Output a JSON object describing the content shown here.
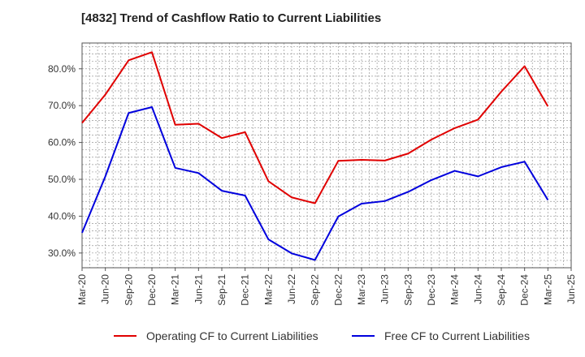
{
  "chart_data": {
    "type": "line",
    "title": "[4832]  Trend of Cashflow Ratio to Current Liabilities",
    "xlabel": "",
    "ylabel": "",
    "x_tick_labels": [
      "Mar-20",
      "Jun-20",
      "Sep-20",
      "Dec-20",
      "Mar-21",
      "Jun-21",
      "Sep-21",
      "Dec-21",
      "Mar-22",
      "Jun-22",
      "Sep-22",
      "Dec-22",
      "Mar-23",
      "Jun-23",
      "Sep-23",
      "Dec-23",
      "Mar-24",
      "Jun-24",
      "Sep-24",
      "Dec-24",
      "Mar-25",
      "Jun-25"
    ],
    "y_ticks": [
      30,
      40,
      50,
      60,
      70,
      80
    ],
    "y_tick_labels": [
      "30.0%",
      "40.0%",
      "50.0%",
      "60.0%",
      "70.0%",
      "80.0%"
    ],
    "ylim": [
      26,
      87
    ],
    "grid": true,
    "legend_position": "bottom",
    "series": [
      {
        "name": "Operating CF to Current Liabilities",
        "color": "#e00000",
        "x": [
          "Mar-20",
          "Jun-20",
          "Sep-20",
          "Dec-20",
          "Mar-21",
          "Jun-21",
          "Sep-21",
          "Dec-21",
          "Mar-22",
          "Jun-22",
          "Sep-22",
          "Dec-22",
          "Mar-23",
          "Jun-23",
          "Sep-23",
          "Dec-23",
          "Mar-24",
          "Jun-24",
          "Sep-24",
          "Dec-24",
          "Mar-25"
        ],
        "values": [
          65.3,
          73.0,
          82.3,
          84.5,
          64.8,
          65.1,
          61.2,
          62.8,
          49.5,
          45.1,
          43.5,
          55.0,
          55.3,
          55.1,
          57.0,
          60.8,
          63.9,
          66.2,
          73.8,
          80.7,
          69.8
        ]
      },
      {
        "name": "Free CF to Current Liabilities",
        "color": "#0000dd",
        "x": [
          "Mar-20",
          "Jun-20",
          "Sep-20",
          "Dec-20",
          "Mar-21",
          "Jun-21",
          "Sep-21",
          "Dec-21",
          "Mar-22",
          "Jun-22",
          "Sep-22",
          "Dec-22",
          "Mar-23",
          "Jun-23",
          "Sep-23",
          "Dec-23",
          "Mar-24",
          "Jun-24",
          "Sep-24",
          "Dec-24",
          "Mar-25"
        ],
        "values": [
          35.5,
          50.8,
          68.0,
          69.6,
          53.1,
          51.7,
          46.9,
          45.6,
          33.7,
          29.9,
          28.1,
          39.9,
          43.4,
          44.1,
          46.6,
          49.8,
          52.3,
          50.8,
          53.3,
          54.8,
          44.4
        ]
      }
    ]
  }
}
